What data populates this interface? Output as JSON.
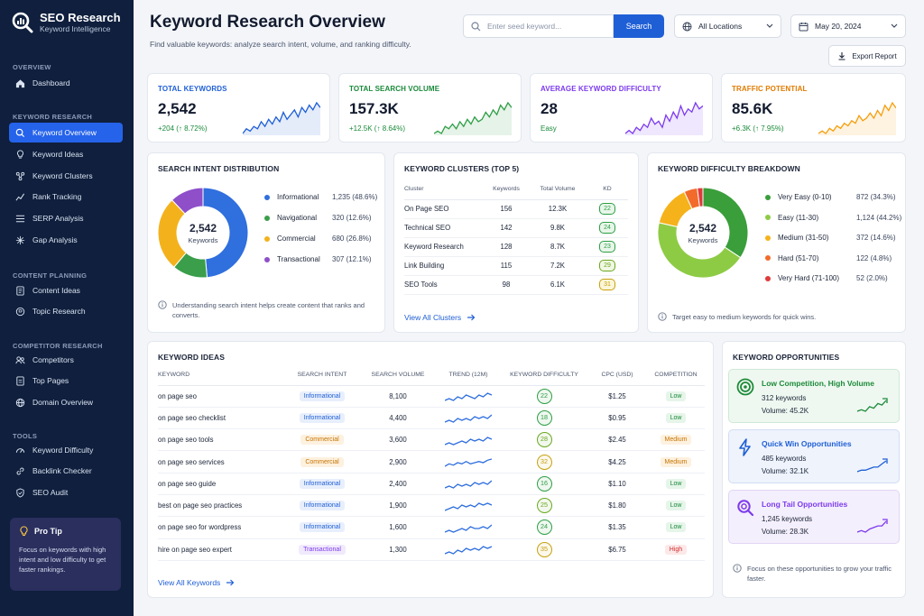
{
  "brand": {
    "title": "SEO Research",
    "subtitle": "Keyword Intelligence"
  },
  "sidebar": {
    "sections": [
      {
        "label": "OVERVIEW",
        "items": [
          {
            "label": "Dashboard",
            "icon": "home-icon"
          }
        ]
      },
      {
        "label": "KEYWORD RESEARCH",
        "items": [
          {
            "label": "Keyword Overview",
            "icon": "search-icon",
            "active": true
          },
          {
            "label": "Keyword Ideas",
            "icon": "lightbulb-icon"
          },
          {
            "label": "Keyword Clusters",
            "icon": "clusters-icon"
          },
          {
            "label": "Rank Tracking",
            "icon": "chart-line-icon"
          },
          {
            "label": "SERP Analysis",
            "icon": "list-icon"
          },
          {
            "label": "Gap Analysis",
            "icon": "gap-icon"
          }
        ]
      },
      {
        "label": "CONTENT PLANNING",
        "items": [
          {
            "label": "Content Ideas",
            "icon": "document-icon"
          },
          {
            "label": "Topic Research",
            "icon": "topic-icon"
          }
        ]
      },
      {
        "label": "COMPETITOR RESEARCH",
        "items": [
          {
            "label": "Competitors",
            "icon": "users-icon"
          },
          {
            "label": "Top Pages",
            "icon": "page-icon"
          },
          {
            "label": "Domain Overview",
            "icon": "globe-icon"
          }
        ]
      },
      {
        "label": "TOOLS",
        "items": [
          {
            "label": "Keyword Difficulty",
            "icon": "gauge-icon"
          },
          {
            "label": "Backlink Checker",
            "icon": "link-icon"
          },
          {
            "label": "SEO Audit",
            "icon": "shield-icon"
          }
        ]
      }
    ],
    "pro_tip": {
      "title": "Pro Tip",
      "body": "Focus on keywords with high intent and low difficulty to get faster rankings."
    }
  },
  "header": {
    "title": "Keyword Research Overview",
    "subtitle": "Find valuable keywords: analyze search intent, volume, and ranking difficulty.",
    "search_placeholder": "Enter seed keyword...",
    "search_button": "Search",
    "location": "All Locations",
    "date": "May 20, 2024",
    "export_label": "Export Report"
  },
  "kpis": [
    {
      "label": "TOTAL KEYWORDS",
      "value": "2,542",
      "delta": "+204 (↑ 8.72%)",
      "color": "#1f5fd6",
      "label_color": "#1f5fd6",
      "spark": [
        3,
        5,
        4,
        6,
        5,
        8,
        6,
        9,
        7,
        10,
        8,
        12,
        9,
        11,
        13,
        10,
        14,
        12,
        15,
        13,
        16,
        14
      ]
    },
    {
      "label": "TOTAL SEARCH VOLUME",
      "value": "157.3K",
      "delta": "+12.5K (↑ 8.64%)",
      "color": "#2e9e45",
      "label_color": "#1a8a3a",
      "spark": [
        3,
        4,
        3,
        6,
        5,
        7,
        5,
        8,
        6,
        9,
        7,
        10,
        8,
        9,
        12,
        10,
        13,
        11,
        15,
        13,
        16,
        14
      ]
    },
    {
      "label": "AVERAGE KEYWORD DIFFICULTY",
      "value": "28",
      "delta": "Easy",
      "color": "#7c3aed",
      "label_color": "#7c3aed",
      "spark": [
        4,
        5,
        4,
        6,
        5,
        7,
        6,
        9,
        7,
        8,
        6,
        10,
        8,
        11,
        9,
        13,
        10,
        12,
        11,
        14,
        12,
        13
      ]
    },
    {
      "label": "TRAFFIC POTENTIAL",
      "value": "85.6K",
      "delta": "+6.3K (↑ 7.95%)",
      "color": "#f59e0b",
      "label_color": "#e07b00",
      "spark": [
        3,
        4,
        3,
        5,
        4,
        6,
        5,
        7,
        6,
        8,
        7,
        10,
        8,
        9,
        11,
        9,
        12,
        10,
        14,
        12,
        15,
        13
      ]
    }
  ],
  "intent": {
    "title": "SEARCH INTENT DISTRIBUTION",
    "center_value": "2,542",
    "center_label": "Keywords",
    "items": [
      {
        "name": "Informational",
        "value": "1,235 (48.6%)",
        "pct": 48.6,
        "color": "#2f6fde"
      },
      {
        "name": "Navigational",
        "value": "320 (12.6%)",
        "pct": 12.6,
        "color": "#3a9e4a"
      },
      {
        "name": "Commercial",
        "value": "680 (26.8%)",
        "pct": 26.8,
        "color": "#f3b21c"
      },
      {
        "name": "Transactional",
        "value": "307 (12.1%)",
        "pct": 12.1,
        "color": "#8e4fc9"
      }
    ],
    "note": "Understanding search intent helps create content that ranks and converts."
  },
  "clusters": {
    "title": "KEYWORD CLUSTERS (TOP 5)",
    "headers": [
      "Cluster",
      "Keywords",
      "Total Volume",
      "KD"
    ],
    "rows": [
      {
        "name": "On Page SEO",
        "keywords": "156",
        "volume": "12.3K",
        "kd": "22",
        "kd_color": "#2e9e45",
        "kd_bg": "#e8f6ea"
      },
      {
        "name": "Technical SEO",
        "keywords": "142",
        "volume": "9.8K",
        "kd": "24",
        "kd_color": "#2e9e45",
        "kd_bg": "#e8f6ea"
      },
      {
        "name": "Keyword Research",
        "keywords": "128",
        "volume": "8.7K",
        "kd": "23",
        "kd_color": "#2e9e45",
        "kd_bg": "#e8f6ea"
      },
      {
        "name": "Link Building",
        "keywords": "115",
        "volume": "7.2K",
        "kd": "29",
        "kd_color": "#6aa820",
        "kd_bg": "#f0f7e3"
      },
      {
        "name": "SEO Tools",
        "keywords": "98",
        "volume": "6.1K",
        "kd": "31",
        "kd_color": "#c7a10e",
        "kd_bg": "#fbf6d8"
      }
    ],
    "link": "View All Clusters"
  },
  "difficulty": {
    "title": "KEYWORD DIFFICULTY BREAKDOWN",
    "center_value": "2,542",
    "center_label": "Keywords",
    "items": [
      {
        "name": "Very Easy (0-10)",
        "value": "872 (34.3%)",
        "pct": 34.3,
        "color": "#3a9e3a"
      },
      {
        "name": "Easy (11-30)",
        "value": "1,124 (44.2%)",
        "pct": 44.2,
        "color": "#8ecb45"
      },
      {
        "name": "Medium (31-50)",
        "value": "372 (14.6%)",
        "pct": 14.6,
        "color": "#f5b21a"
      },
      {
        "name": "Hard (51-70)",
        "value": "122 (4.8%)",
        "pct": 4.8,
        "color": "#f26b2b"
      },
      {
        "name": "Very Hard (71-100)",
        "value": "52 (2.0%)",
        "pct": 2.0,
        "color": "#e03a3a"
      }
    ],
    "note": "Target easy to medium keywords for quick wins."
  },
  "ideas": {
    "title": "KEYWORD IDEAS",
    "headers": [
      "KEYWORD",
      "SEARCH INTENT",
      "SEARCH VOLUME",
      "TREND (12M)",
      "KEYWORD DIFFICULTY",
      "CPC (USD)",
      "COMPETITION"
    ],
    "rows": [
      {
        "keyword": "on page seo",
        "intent": "Informational",
        "volume": "8,100",
        "kd": "22",
        "cpc": "$1.25",
        "comp": "Low"
      },
      {
        "keyword": "on page seo checklist",
        "intent": "Informational",
        "volume": "4,400",
        "kd": "18",
        "cpc": "$0.95",
        "comp": "Low"
      },
      {
        "keyword": "on page seo tools",
        "intent": "Commercial",
        "volume": "3,600",
        "kd": "28",
        "cpc": "$2.45",
        "comp": "Medium"
      },
      {
        "keyword": "on page seo services",
        "intent": "Commercial",
        "volume": "2,900",
        "kd": "32",
        "cpc": "$4.25",
        "comp": "Medium"
      },
      {
        "keyword": "on page seo guide",
        "intent": "Informational",
        "volume": "2,400",
        "kd": "16",
        "cpc": "$1.10",
        "comp": "Low"
      },
      {
        "keyword": "best on page seo practices",
        "intent": "Informational",
        "volume": "1,900",
        "kd": "25",
        "cpc": "$1.80",
        "comp": "Low"
      },
      {
        "keyword": "on page seo for wordpress",
        "intent": "Informational",
        "volume": "1,600",
        "kd": "24",
        "cpc": "$1.35",
        "comp": "Low"
      },
      {
        "keyword": "hire on page seo expert",
        "intent": "Transactional",
        "volume": "1,300",
        "kd": "35",
        "cpc": "$6.75",
        "comp": "High"
      }
    ],
    "link": "View All Keywords"
  },
  "opportunities": {
    "title": "KEYWORD OPPORTUNITIES",
    "items": [
      {
        "title": "Low Competition, High Volume",
        "keywords": "312 keywords",
        "volume": "Volume: 45.2K",
        "color": "#1e8a3a",
        "bg": "#eef8f0",
        "border": "#cfe9d5",
        "icon": "target-icon"
      },
      {
        "title": "Quick Win Opportunities",
        "keywords": "485 keywords",
        "volume": "Volume: 32.1K",
        "color": "#1f5fd6",
        "bg": "#eef3fc",
        "border": "#d3def3",
        "icon": "lightning-icon"
      },
      {
        "title": "Long Tail Opportunities",
        "keywords": "1,245 keywords",
        "volume": "Volume: 28.3K",
        "color": "#7c3aed",
        "bg": "#f4effc",
        "border": "#e1d5f5",
        "icon": "search-icon"
      }
    ],
    "note": "Focus on these opportunities to grow your traffic faster."
  }
}
